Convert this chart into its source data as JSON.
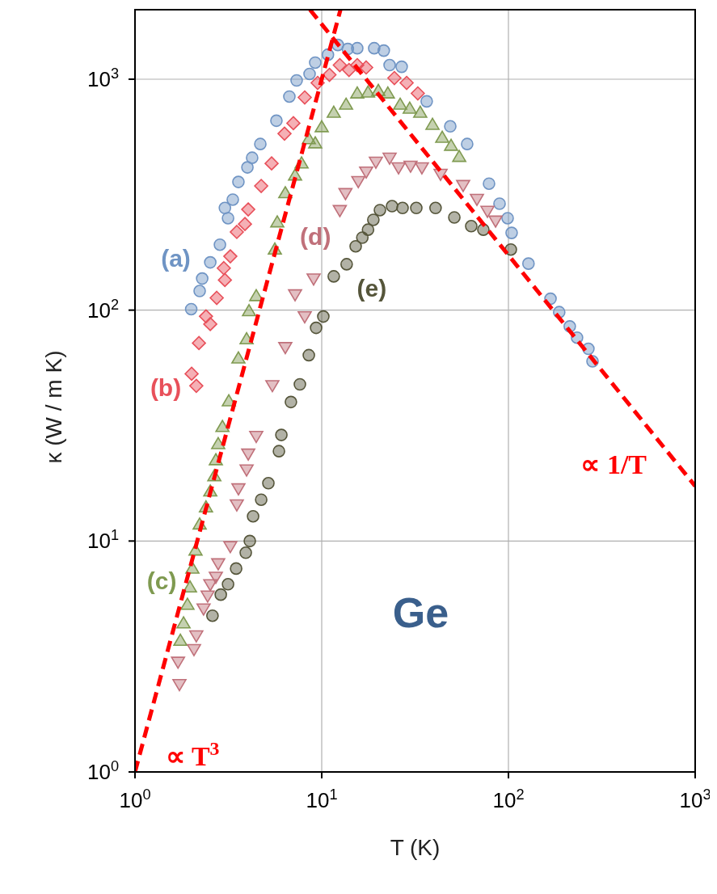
{
  "chart_data": {
    "type": "scatter",
    "xlabel": "T (K)",
    "ylabel": "κ (W / m K)",
    "xlim": [
      1,
      1000
    ],
    "ylim": [
      1,
      2000
    ],
    "log": "xy",
    "grid": true,
    "xticks": [
      {
        "value": 1,
        "label": "10$^{0}$"
      },
      {
        "value": 10,
        "label": "10$^{1}$"
      },
      {
        "value": 100,
        "label": "10$^{2}$"
      },
      {
        "value": 1000,
        "label": "10$^{3}$"
      }
    ],
    "yticks": [
      {
        "value": 1,
        "label": "10$^{0}$"
      },
      {
        "value": 10,
        "label": "10$^{1}$"
      },
      {
        "value": 100,
        "label": "10$^{2}$"
      },
      {
        "value": 1000,
        "label": "10$^{3}$"
      }
    ],
    "annotations": [
      "Ge"
    ],
    "series": [
      {
        "name": "(a)",
        "color": "#6f94c4",
        "marker": "circle",
        "x": [
          2.0,
          2.22,
          2.29,
          2.53,
          2.85,
          3.03,
          3.15,
          3.34,
          3.58,
          4.0,
          4.24,
          4.69,
          5.72,
          6.71,
          7.34,
          8.61,
          9.23,
          10.8,
          12.2,
          13.8,
          15.5,
          19.1,
          21.5,
          23.1,
          26.8,
          36.5,
          48.8,
          60.1,
          78.7,
          89.6,
          99,
          104,
          128,
          168,
          187,
          213,
          233,
          268,
          282
        ],
        "values": [
          101,
          121,
          137,
          161,
          192,
          277,
          250,
          301,
          359,
          415,
          457,
          524,
          661,
          841,
          988,
          1054,
          1180,
          1277,
          1407,
          1352,
          1362,
          1362,
          1330,
          1151,
          1132,
          802,
          625,
          524,
          353,
          289,
          250,
          216,
          159,
          112,
          98,
          85,
          76,
          68,
          60
        ]
      },
      {
        "name": "(b)",
        "color": "#e8505a",
        "marker": "diamond",
        "x": [
          2.01,
          2.13,
          2.2,
          2.4,
          2.53,
          2.74,
          2.99,
          3.03,
          3.24,
          3.51,
          3.88,
          4.04,
          4.74,
          5.39,
          6.32,
          7.05,
          8.11,
          9.51,
          11.0,
          12.5,
          14.0,
          15.5,
          17.3,
          24.5,
          28.5,
          32.7
        ],
        "values": [
          53,
          47,
          72,
          94,
          87,
          113,
          152,
          135,
          171,
          218,
          236,
          273,
          345,
          432,
          581,
          645,
          834,
          964,
          1045,
          1151,
          1097,
          1151,
          1124,
          1012,
          964,
          868
        ]
      },
      {
        "name": "(c)",
        "color": "#7f9a50",
        "marker": "triangle",
        "x": [
          1.75,
          1.82,
          1.91,
          1.97,
          2.03,
          2.11,
          2.22,
          2.4,
          2.53,
          2.66,
          2.71,
          2.79,
          2.94,
          3.18,
          3.58,
          3.96,
          4.08,
          4.46,
          5.61,
          5.78,
          6.38,
          7.2,
          7.8,
          8.53,
          9.23,
          10.0,
          11.6,
          13.5,
          15.5,
          17.7,
          20.1,
          22.6,
          26.3,
          29.6,
          33.7,
          39.2,
          44.2,
          49.3,
          54.5
        ],
        "values": [
          3.7,
          4.4,
          5.3,
          6.3,
          7.6,
          9.1,
          11.8,
          14.0,
          16.4,
          19.1,
          22.4,
          26.3,
          31.2,
          40.3,
          61.8,
          74.8,
          99,
          115,
          183,
          240,
          321,
          383,
          432,
          550,
          528,
          620,
          716,
          776,
          868,
          876,
          890,
          868,
          776,
          746,
          716,
          635,
          558,
          515,
          461
        ]
      },
      {
        "name": "(d)",
        "color": "#c0707a",
        "marker": "triangle-down",
        "x": [
          1.7,
          1.73,
          2.07,
          2.13,
          2.33,
          2.45,
          2.53,
          2.71,
          2.79,
          3.24,
          3.51,
          3.58,
          3.96,
          4.04,
          4.46,
          5.44,
          6.38,
          7.2,
          8.11,
          9.05,
          12.5,
          13.4,
          15.7,
          17.3,
          19.5,
          23.1,
          25.8,
          29.9,
          34.4,
          43.3,
          57.2,
          67.8,
          77.2,
          85.3
        ],
        "values": [
          3.0,
          2.4,
          3.4,
          3.9,
          5.1,
          5.8,
          6.5,
          7.0,
          8.0,
          9.5,
          14.4,
          16.9,
          20.4,
          23.9,
          28.5,
          47.3,
          69.1,
          117,
          94,
          137,
          271,
          321,
          362,
          398,
          439,
          457,
          415,
          422,
          415,
          389,
          348,
          303,
          269,
          244
        ]
      },
      {
        "name": "(e)",
        "color": "#55553a",
        "marker": "circle",
        "x": [
          2.6,
          2.88,
          3.15,
          3.48,
          3.92,
          4.12,
          4.29,
          4.74,
          5.18,
          5.9,
          6.08,
          6.84,
          7.64,
          8.53,
          9.33,
          10.2,
          11.6,
          13.6,
          15.2,
          16.5,
          17.7,
          18.9,
          20.5,
          23.8,
          27.1,
          32.1,
          40.7,
          51.3,
          63.2,
          73.4,
          103
        ],
        "values": [
          4.75,
          5.86,
          6.5,
          7.6,
          8.9,
          10.0,
          12.8,
          15.1,
          17.8,
          24.5,
          28.8,
          40.0,
          47.7,
          63.8,
          83.8,
          93.8,
          140,
          158,
          189,
          206,
          223,
          246,
          271,
          282,
          277,
          277,
          277,
          252,
          231,
          223,
          183
        ]
      },
      {
        "name": "∝ T$^{3}$",
        "type": "line",
        "color": "#ff0000",
        "line_style": "dashed",
        "marker": "none",
        "x": [
          1,
          12.6
        ],
        "values": [
          1,
          2000
        ]
      },
      {
        "name": "∝ 1/T",
        "type": "line",
        "color": "#ff0000",
        "line_style": "dashed",
        "marker": "none",
        "x": [
          8.65,
          1000
        ],
        "values": [
          2000,
          17.3
        ]
      }
    ]
  }
}
